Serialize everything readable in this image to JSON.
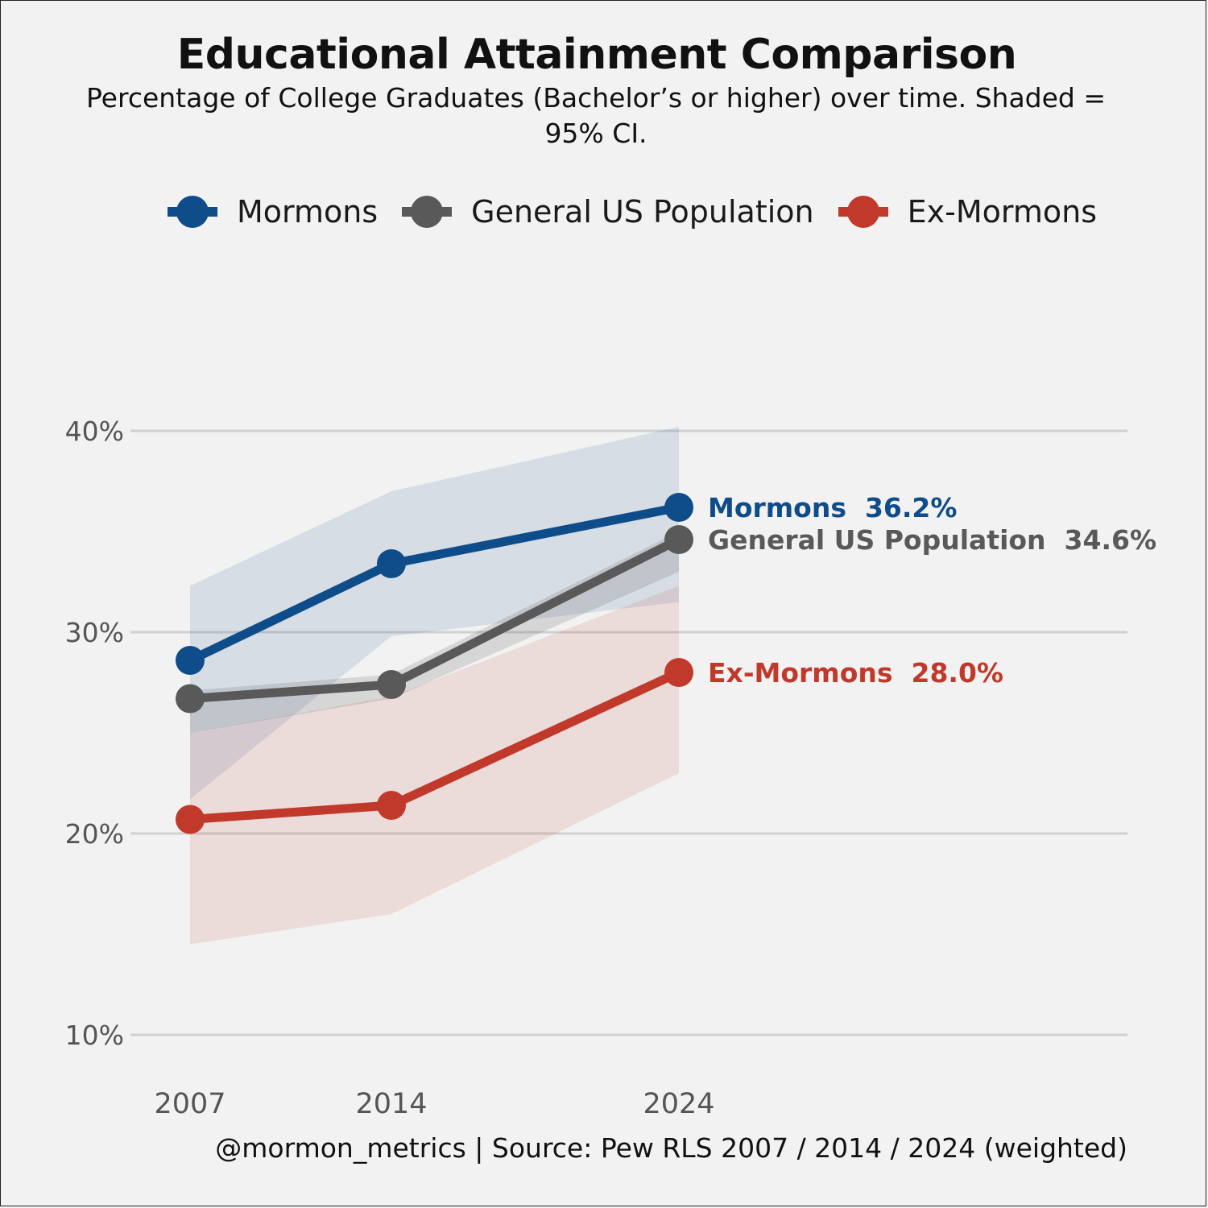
{
  "chart_data": {
    "type": "line",
    "title": "Educational Attainment Comparison",
    "subtitle": "Percentage of College Graduates (Bachelor’s or higher) over time. Shaded = 95% CI.",
    "xlabel": "",
    "ylabel": "",
    "x": [
      2007,
      2014,
      2024
    ],
    "x_tick_labels": [
      "2007",
      "2014",
      "2024"
    ],
    "ylim": [
      10,
      40
    ],
    "y_ticks": [
      10,
      20,
      30,
      40
    ],
    "y_tick_labels": [
      "10%",
      "20%",
      "30%",
      "40%"
    ],
    "grid": "horizontal",
    "legend_position": "top",
    "series": [
      {
        "name": "Mormons",
        "color": "#0f4c8a",
        "values": [
          28.6,
          33.4,
          36.2
        ],
        "ci_low": [
          21.7,
          29.8,
          31.5
        ],
        "ci_high": [
          32.3,
          37.0,
          40.2
        ],
        "end_label": "Mormons  36.2%"
      },
      {
        "name": "General US Population",
        "color": "#595959",
        "values": [
          26.7,
          27.4,
          34.6
        ],
        "ci_low": [
          25.0,
          26.7,
          33.0
        ],
        "ci_high": [
          27.1,
          27.9,
          35.0
        ],
        "end_label": "General US Population  34.6%"
      },
      {
        "name": "Ex-Mormons",
        "color": "#c0392b",
        "values": [
          20.7,
          21.4,
          28.0
        ],
        "ci_low": [
          14.5,
          16.0,
          23.0
        ],
        "ci_high": [
          25.0,
          26.8,
          32.3
        ],
        "end_label": "Ex-Mormons  28.0%"
      }
    ]
  },
  "caption": "@mormon_metrics  |  Source: Pew RLS 2007 / 2014 / 2024 (weighted)"
}
